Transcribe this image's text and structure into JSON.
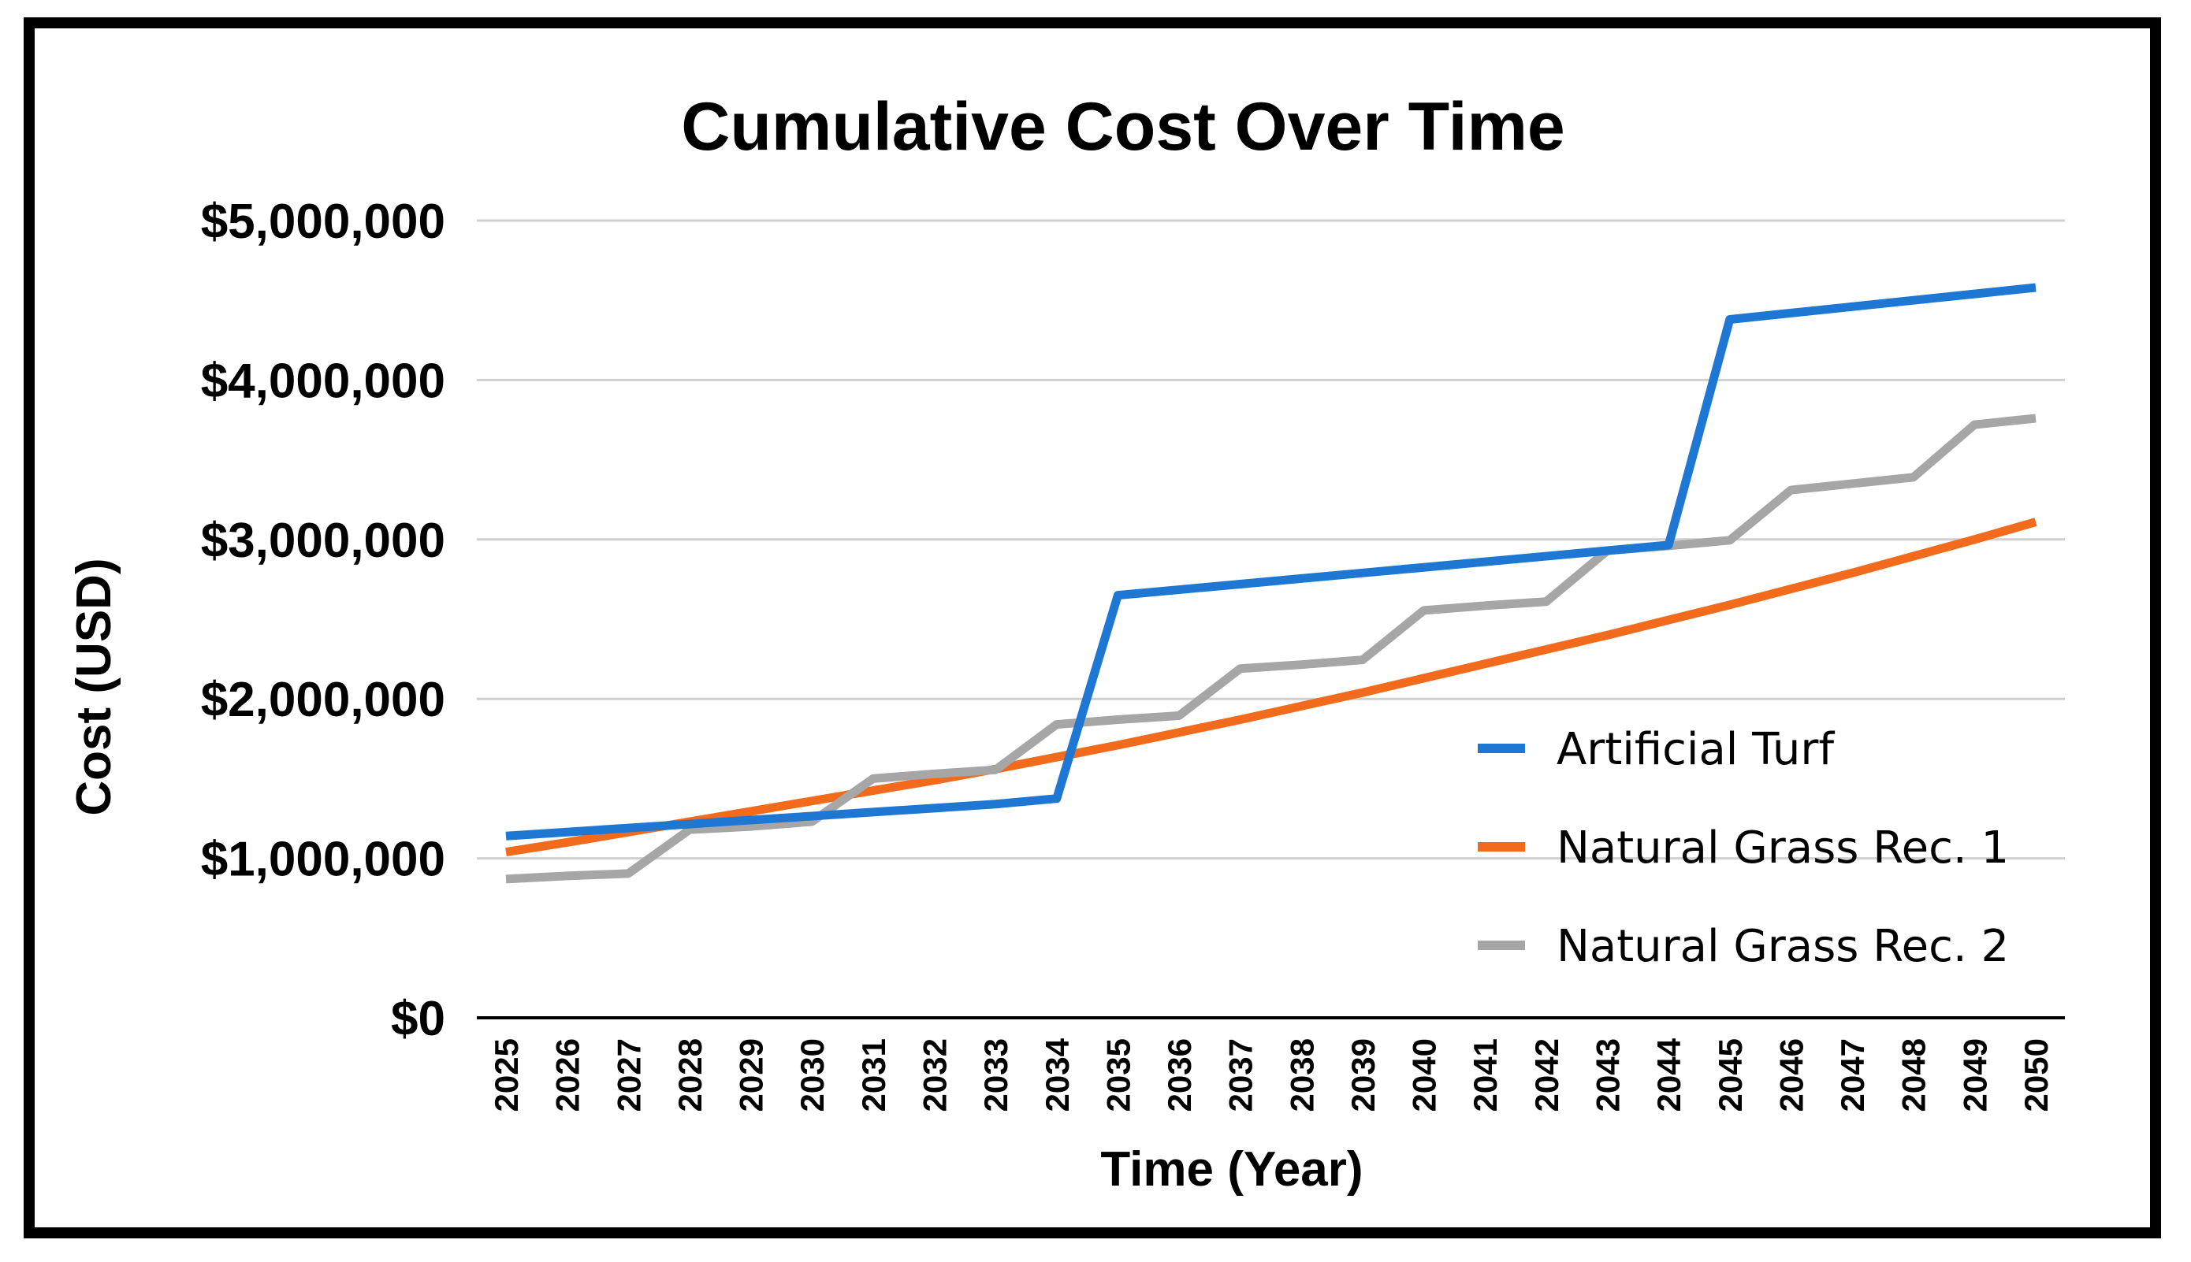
{
  "chart_data": {
    "type": "line",
    "title": "Cumulative Cost Over Time",
    "xlabel": "Time (Year)",
    "ylabel": "Cost (USD)",
    "ylim": [
      0,
      5000000
    ],
    "y_ticks": [
      {
        "value": 0,
        "label": "$0"
      },
      {
        "value": 1000000,
        "label": "$1,000,000"
      },
      {
        "value": 2000000,
        "label": "$2,000,000"
      },
      {
        "value": 3000000,
        "label": "$3,000,000"
      },
      {
        "value": 4000000,
        "label": "$4,000,000"
      },
      {
        "value": 5000000,
        "label": "$5,000,000"
      }
    ],
    "categories": [
      "2025",
      "2026",
      "2027",
      "2028",
      "2029",
      "2030",
      "2031",
      "2032",
      "2033",
      "2034",
      "2035",
      "2036",
      "2037",
      "2038",
      "2039",
      "2040",
      "2041",
      "2042",
      "2043",
      "2044",
      "2045",
      "2046",
      "2047",
      "2048",
      "2049",
      "2050"
    ],
    "grid": true,
    "legend_position": "bottom-right",
    "series": [
      {
        "name": "Artificial Turf",
        "color": "#1f77d4",
        "values": [
          1140000,
          1165000,
          1190000,
          1215000,
          1240000,
          1265000,
          1290000,
          1315000,
          1340000,
          1375000,
          2650000,
          2685000,
          2720000,
          2755000,
          2790000,
          2825000,
          2860000,
          2895000,
          2930000,
          2965000,
          4380000,
          4420000,
          4460000,
          4500000,
          4540000,
          4580000
        ]
      },
      {
        "name": "Natural Grass Rec. 1",
        "color": "#f26b1d",
        "values": [
          1040000,
          1100000,
          1165000,
          1230000,
          1295000,
          1360000,
          1425000,
          1490000,
          1560000,
          1635000,
          1710000,
          1790000,
          1870000,
          1955000,
          2040000,
          2130000,
          2220000,
          2310000,
          2400000,
          2495000,
          2590000,
          2690000,
          2790000,
          2895000,
          3000000,
          3110000
        ]
      },
      {
        "name": "Natural Grass Rec. 2",
        "color": "#a6a6a6",
        "values": [
          870000,
          890000,
          905000,
          1180000,
          1200000,
          1230000,
          1500000,
          1530000,
          1555000,
          1840000,
          1870000,
          1895000,
          2190000,
          2215000,
          2245000,
          2555000,
          2585000,
          2610000,
          2930000,
          2960000,
          2995000,
          3310000,
          3350000,
          3390000,
          3720000,
          3760000
        ]
      }
    ]
  }
}
